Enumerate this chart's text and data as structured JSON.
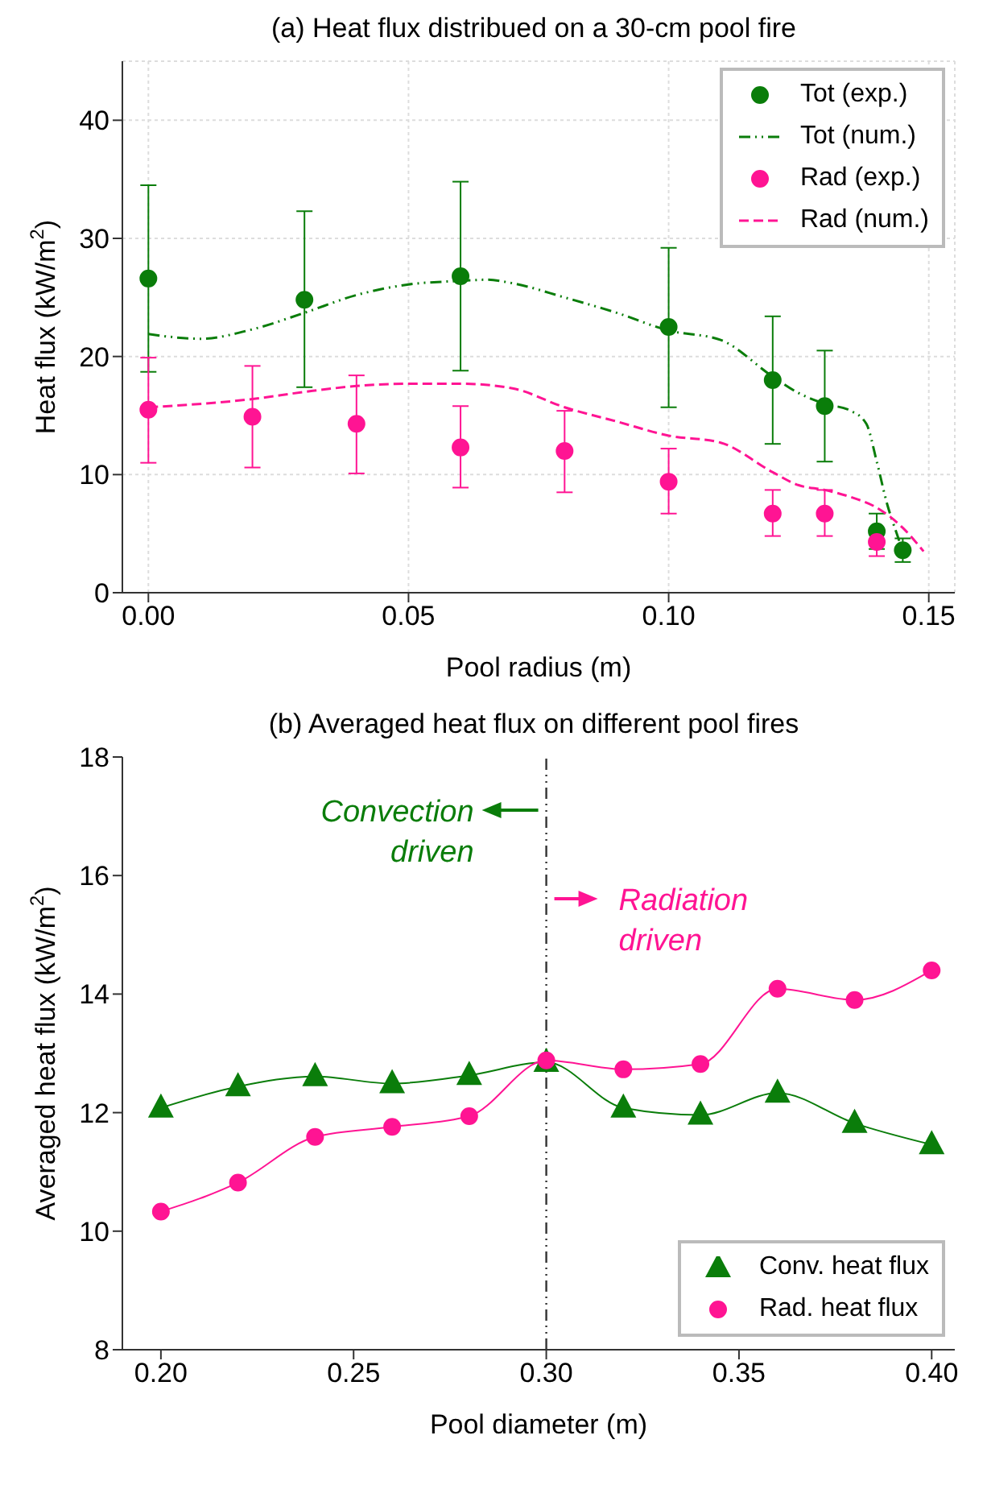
{
  "chart_data": [
    {
      "type": "scatter",
      "title": "(a) Heat flux distribued on a 30-cm pool fire",
      "xlabel": "Pool radius (m)",
      "ylabel": "Heat flux (kW/m$^{2}$)",
      "xlim": [
        -0.005,
        0.155
      ],
      "xticks": [
        {
          "value": 0,
          "label": "0.00"
        },
        {
          "value": 0.05,
          "label": "0.05"
        },
        {
          "value": 0.1,
          "label": "0.10"
        },
        {
          "value": 0.15,
          "label": "0.15"
        }
      ],
      "ylim": [
        0,
        45
      ],
      "yticks": [
        0,
        10,
        20,
        30,
        40
      ],
      "grid": true,
      "legend": "top right",
      "series": [
        {
          "name": "Tot (exp.)",
          "marker": "circle",
          "color": "#0a7d0a",
          "x": [
            0,
            0.03,
            0.06,
            0.1,
            0.12,
            0.13,
            0.14,
            0.145
          ],
          "values": [
            26.6,
            24.8,
            26.8,
            22.5,
            18.0,
            15.8,
            5.2,
            3.6
          ],
          "errors": [
            [
              18.7,
              34.5
            ],
            [
              17.4,
              32.3
            ],
            [
              18.8,
              34.8
            ],
            [
              15.7,
              29.2
            ],
            [
              12.6,
              23.4
            ],
            [
              11.1,
              20.5
            ],
            [
              3.7,
              6.7
            ],
            [
              2.6,
              4.6
            ]
          ]
        },
        {
          "name": "Tot (num.)",
          "type": "line",
          "line_style": "dashdot",
          "color": "#0a7d0a",
          "x": [
            0,
            0.01,
            0.02,
            0.03,
            0.04,
            0.05,
            0.06,
            0.065,
            0.07,
            0.08,
            0.09,
            0.1,
            0.11,
            0.12,
            0.125,
            0.13,
            0.135,
            0.138,
            0.14,
            0.142,
            0.144,
            0.145
          ],
          "values": [
            21.9,
            21.5,
            22.3,
            23.7,
            25.2,
            26.1,
            26.4,
            26.5,
            26.2,
            25.0,
            23.7,
            22.2,
            21.4,
            18.3,
            16.9,
            16.0,
            15.4,
            14.3,
            11.1,
            7.5,
            4.8,
            3.5
          ]
        },
        {
          "name": "Rad (exp.)",
          "marker": "circle",
          "color": "#ff1493",
          "x": [
            0,
            0.02,
            0.04,
            0.06,
            0.08,
            0.1,
            0.12,
            0.13,
            0.14
          ],
          "values": [
            15.5,
            14.9,
            14.3,
            12.3,
            12.0,
            9.4,
            6.7,
            6.7,
            4.3
          ],
          "errors": [
            [
              11.0,
              19.9
            ],
            [
              10.6,
              19.2
            ],
            [
              10.1,
              18.4
            ],
            [
              8.9,
              15.8
            ],
            [
              8.5,
              15.4
            ],
            [
              6.7,
              12.2
            ],
            [
              4.8,
              8.7
            ],
            [
              4.8,
              8.7
            ],
            [
              3.1,
              5.1
            ]
          ]
        },
        {
          "name": "Rad (num.)",
          "type": "line",
          "line_style": "dashed",
          "color": "#ff1493",
          "x": [
            0,
            0.02,
            0.03,
            0.04,
            0.05,
            0.06,
            0.07,
            0.08,
            0.09,
            0.1,
            0.11,
            0.12,
            0.125,
            0.13,
            0.135,
            0.14,
            0.145,
            0.149
          ],
          "values": [
            15.7,
            16.4,
            17.0,
            17.5,
            17.7,
            17.7,
            17.3,
            15.7,
            14.5,
            13.3,
            12.7,
            10.2,
            9.1,
            8.7,
            8.1,
            7.2,
            5.5,
            3.5
          ]
        }
      ]
    },
    {
      "type": "line",
      "title": "(b) Averaged heat flux on different pool fires",
      "xlabel": "Pool diameter (m)",
      "ylabel": "Averaged heat flux (kW/m$^{2}$)",
      "xlim": [
        0.19,
        0.406
      ],
      "xticks": [
        {
          "value": 0.2,
          "label": "0.20"
        },
        {
          "value": 0.25,
          "label": "0.25"
        },
        {
          "value": 0.3,
          "label": "0.30"
        },
        {
          "value": 0.35,
          "label": "0.35"
        },
        {
          "value": 0.4,
          "label": "0.40"
        }
      ],
      "ylim": [
        8,
        18
      ],
      "yticks": [
        8,
        10,
        12,
        14,
        16,
        18
      ],
      "legend": "bottom right",
      "x": [
        0.2,
        0.22,
        0.24,
        0.26,
        0.28,
        0.3,
        0.32,
        0.34,
        0.36,
        0.38,
        0.4
      ],
      "series": [
        {
          "name": "Conv. heat flux",
          "marker": "triangle",
          "color": "#0a7d0a",
          "values": [
            12.08,
            12.44,
            12.61,
            12.49,
            12.63,
            12.85,
            12.08,
            11.96,
            12.33,
            11.82,
            11.46
          ]
        },
        {
          "name": "Rad. heat flux",
          "marker": "circle",
          "color": "#ff1493",
          "values": [
            10.33,
            10.82,
            11.59,
            11.76,
            11.94,
            12.88,
            12.73,
            12.82,
            14.09,
            13.9,
            14.4
          ]
        }
      ],
      "ref_lines": [
        {
          "axis": "x",
          "value": 0.3,
          "color": "#333333",
          "line_style": "dashdot"
        }
      ],
      "annotations": [
        "Convection driven",
        "Radiation driven"
      ]
    }
  ]
}
